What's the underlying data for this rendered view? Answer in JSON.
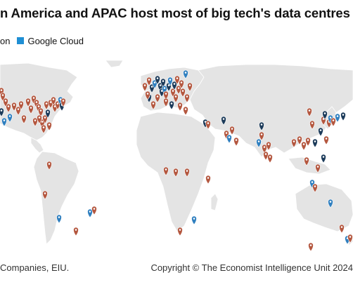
{
  "title": "n America and APAC host most of big tech's data centres",
  "legend": {
    "items": [
      {
        "label": "on",
        "color": "#d2685a"
      },
      {
        "label": "Google Cloud",
        "color": "#1f8fd4"
      }
    ]
  },
  "colors": {
    "land": "#e4e4e4",
    "border": "#ffffff",
    "amazon_marker": "#b4573f",
    "google_marker": "#2f7fbf",
    "microsoft_marker": "#1c3b5a"
  },
  "icons": [
    "map-pin-icon"
  ],
  "footer": {
    "source": "Companies, EIU.",
    "copyright": "Copyright © The Economist Intelligence Unit 2024"
  }
}
